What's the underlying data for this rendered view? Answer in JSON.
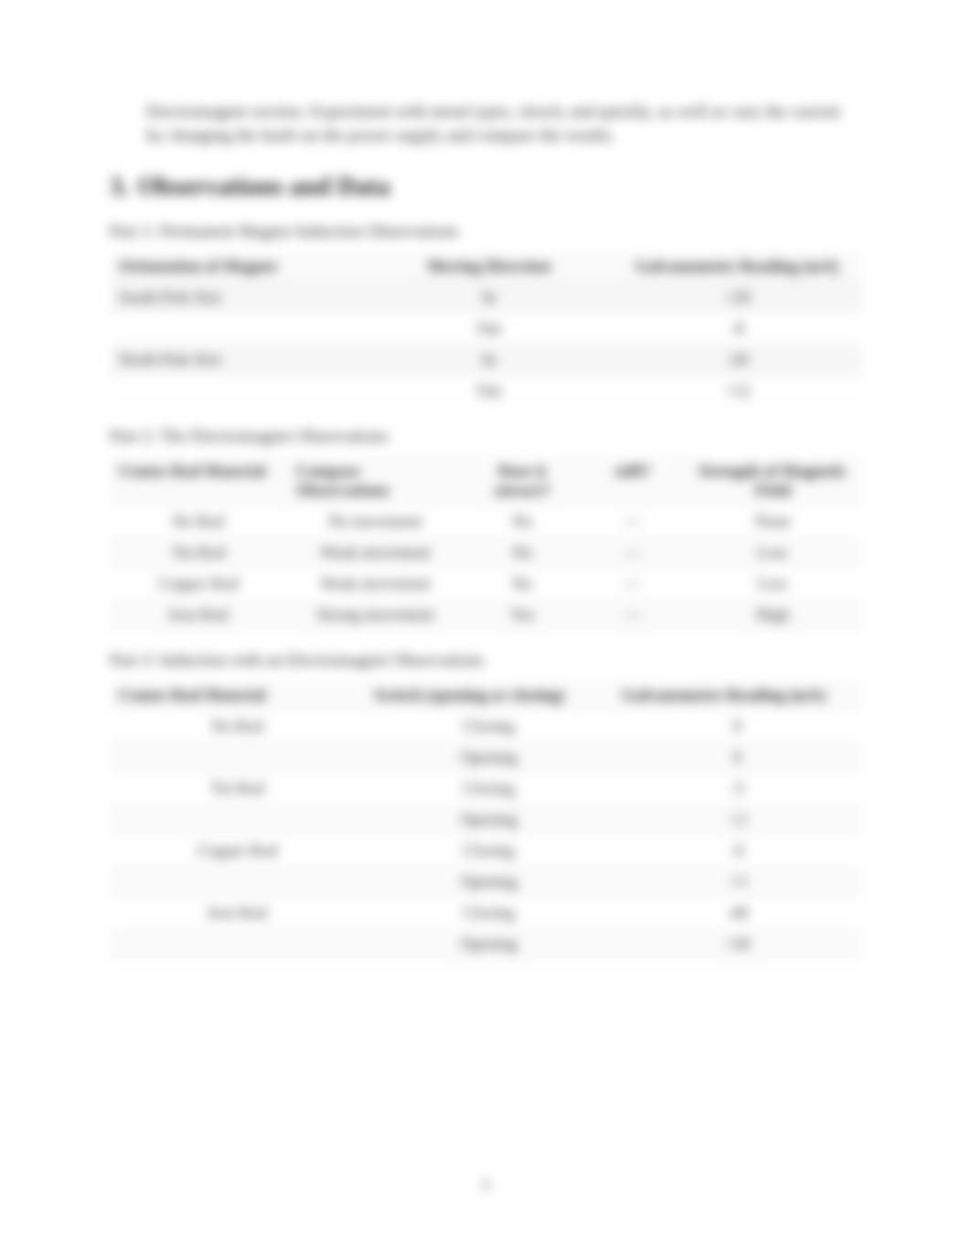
{
  "colors": {
    "text": "#2a2a2a",
    "heading": "#222222",
    "band": "#f6f6f6",
    "zebra": "#fafafa",
    "rule": "#eeeeee",
    "background": "#ffffff"
  },
  "intro": "Electromagnet section. Experiment with metal types, slowly and quickly, as well as vary the current by changing the knob on the power supply and compare the results.",
  "section": {
    "number": "3.",
    "title": "Observations and Data"
  },
  "part1": {
    "label": "Part 1: Permanent Magnet Induction Observations",
    "columns": [
      "Orientation of Magnet",
      "Moving Direction",
      "Galvanometer Reading (mA)"
    ],
    "rows": [
      {
        "orientation": "South Pole first",
        "direction": "In",
        "reading": "+20",
        "band": true
      },
      {
        "orientation": "",
        "direction": "Out",
        "reading": "-8",
        "band": false
      },
      {
        "orientation": "North Pole first",
        "direction": "In",
        "reading": "-20",
        "band": true
      },
      {
        "orientation": "",
        "direction": "Out",
        "reading": "+12",
        "band": false
      }
    ]
  },
  "part2": {
    "label": "Part 2: The Electromagnet Observations",
    "columns": [
      "Center Rod Material",
      "Compass Observations",
      "Does it attract?",
      "stiff?",
      "Strength of Magnetic Field"
    ],
    "rows": [
      [
        "No Rod",
        "No movement",
        "No",
        "—",
        "None"
      ],
      [
        "Tin Rod",
        "Weak movement",
        "No",
        "—",
        "Low"
      ],
      [
        "Copper Rod",
        "Weak movement",
        "No",
        "—",
        "Low"
      ],
      [
        "Iron Rod",
        "Strong movement",
        "Yes",
        "—",
        "High"
      ]
    ]
  },
  "part3": {
    "label": "Part 3: Induction with an Electromagnet Observations",
    "columns": [
      "Center Rod Material",
      "Switch (opening or closing)",
      "Galvanometer Reading (mA)"
    ],
    "rows": [
      [
        "No Rod",
        "Closing",
        "0"
      ],
      [
        "",
        "Opening",
        "0"
      ],
      [
        "Tin Rod",
        "Closing",
        "-5"
      ],
      [
        "",
        "Opening",
        "+2"
      ],
      [
        "Copper Rod",
        "Closing",
        "-6"
      ],
      [
        "",
        "Opening",
        "+3"
      ],
      [
        "Iron Rod",
        "Closing",
        "-40"
      ],
      [
        "",
        "Opening",
        "+20"
      ]
    ]
  },
  "pageNumber": "3"
}
